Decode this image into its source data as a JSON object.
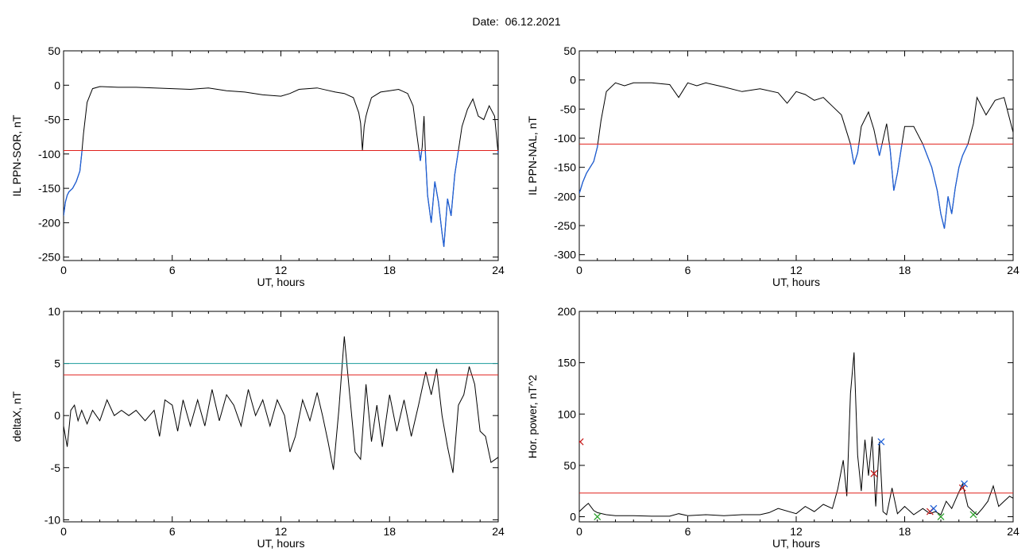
{
  "page": {
    "title": "Date:  06.12.2021"
  },
  "colors": {
    "trace": "#000000",
    "below_threshold": "#1f5fd6",
    "threshold": "#e0201c",
    "threshold2": "#1a9c9c",
    "marker_red": "#c81e1e",
    "marker_blue": "#1f5fd6",
    "marker_green": "#2aa02a"
  },
  "chart_data": [
    {
      "type": "line",
      "title": "",
      "xlabel": "UT, hours",
      "ylabel": "IL PPN-SOR, nT",
      "xlim": [
        0,
        24
      ],
      "ylim": [
        -255,
        50
      ],
      "xticks": [
        0,
        6,
        12,
        18,
        24
      ],
      "yticks": [
        50,
        0,
        -50,
        -100,
        -150,
        -200,
        -250
      ],
      "threshold": -95,
      "highlight_below": true,
      "series": [
        {
          "x": [
            0,
            0.1,
            0.2,
            0.3,
            0.5,
            0.7,
            0.9,
            1.0,
            1.1,
            1.3,
            1.6,
            2.0,
            3.0,
            4.0,
            5.0,
            6.0,
            7.0,
            8.0,
            9.0,
            10.0,
            11.0,
            12.0,
            12.5,
            13.0,
            13.5,
            14.0,
            14.5,
            15.0,
            15.5,
            16.0,
            16.3,
            16.4,
            16.5,
            16.6,
            16.7,
            16.8,
            17.0,
            17.5,
            18.0,
            18.5,
            19.0,
            19.3,
            19.5,
            19.7,
            19.8,
            19.9,
            20.0,
            20.1,
            20.3,
            20.5,
            20.7,
            20.9,
            21.0,
            21.1,
            21.2,
            21.4,
            21.6,
            21.8,
            22.0,
            22.3,
            22.6,
            22.9,
            23.2,
            23.5,
            23.8,
            24.0
          ],
          "y": [
            -190,
            -170,
            -160,
            -155,
            -150,
            -140,
            -125,
            -100,
            -70,
            -25,
            -5,
            -2,
            -3,
            -3,
            -4,
            -5,
            -6,
            -4,
            -8,
            -10,
            -14,
            -16,
            -12,
            -6,
            -5,
            -4,
            -7,
            -10,
            -12,
            -18,
            -40,
            -55,
            -95,
            -60,
            -45,
            -35,
            -18,
            -10,
            -8,
            -6,
            -12,
            -30,
            -70,
            -110,
            -90,
            -45,
            -110,
            -160,
            -200,
            -140,
            -170,
            -215,
            -235,
            -200,
            -165,
            -190,
            -130,
            -95,
            -60,
            -35,
            -20,
            -45,
            -50,
            -30,
            -45,
            -100
          ]
        }
      ]
    },
    {
      "type": "line",
      "title": "",
      "xlabel": "UT, hours",
      "ylabel": "IL PPN-NAL, nT",
      "xlim": [
        0,
        24
      ],
      "ylim": [
        -310,
        50
      ],
      "xticks": [
        0,
        6,
        12,
        18,
        24
      ],
      "yticks": [
        50,
        0,
        -50,
        -100,
        -150,
        -200,
        -250,
        -300
      ],
      "threshold": -110,
      "highlight_below": true,
      "series": [
        {
          "x": [
            0,
            0.2,
            0.4,
            0.6,
            0.8,
            1.0,
            1.2,
            1.5,
            2.0,
            2.5,
            3.0,
            4.0,
            5.0,
            5.5,
            6.0,
            6.5,
            7.0,
            8.0,
            9.0,
            10.0,
            11.0,
            11.5,
            12.0,
            12.5,
            13.0,
            13.5,
            14.0,
            14.5,
            15.0,
            15.2,
            15.4,
            15.6,
            16.0,
            16.3,
            16.6,
            17.0,
            17.2,
            17.4,
            17.6,
            18.0,
            18.5,
            19.0,
            19.5,
            19.8,
            20.0,
            20.2,
            20.4,
            20.6,
            20.8,
            21.0,
            21.2,
            21.5,
            21.8,
            22.0,
            22.5,
            23.0,
            23.5,
            24.0
          ],
          "y": [
            -195,
            -175,
            -160,
            -150,
            -140,
            -115,
            -70,
            -20,
            -5,
            -10,
            -5,
            -5,
            -8,
            -30,
            -5,
            -10,
            -5,
            -12,
            -20,
            -15,
            -22,
            -40,
            -20,
            -25,
            -35,
            -30,
            -45,
            -60,
            -110,
            -145,
            -125,
            -80,
            -55,
            -85,
            -130,
            -75,
            -120,
            -190,
            -160,
            -80,
            -80,
            -110,
            -150,
            -190,
            -230,
            -255,
            -200,
            -230,
            -185,
            -150,
            -130,
            -110,
            -75,
            -30,
            -60,
            -35,
            -30,
            -90
          ]
        }
      ]
    },
    {
      "type": "line",
      "title": "",
      "xlabel": "UT, hours",
      "ylabel": "deltaX, nT",
      "xlim": [
        0,
        24
      ],
      "ylim": [
        -10.2,
        10
      ],
      "xticks": [
        0,
        6,
        12,
        18,
        24
      ],
      "yticks": [
        10,
        5,
        0,
        -5,
        -10
      ],
      "threshold": 3.9,
      "threshold2": 5.0,
      "highlight_below": false,
      "series": [
        {
          "x": [
            0,
            0.2,
            0.4,
            0.6,
            0.8,
            1.0,
            1.3,
            1.6,
            2.0,
            2.4,
            2.8,
            3.2,
            3.6,
            4.0,
            4.5,
            5.0,
            5.3,
            5.6,
            6.0,
            6.3,
            6.6,
            7.0,
            7.4,
            7.8,
            8.2,
            8.6,
            9.0,
            9.4,
            9.8,
            10.2,
            10.6,
            11.0,
            11.4,
            11.8,
            12.2,
            12.5,
            12.8,
            13.2,
            13.6,
            14.0,
            14.3,
            14.6,
            14.9,
            15.2,
            15.5,
            15.8,
            16.1,
            16.4,
            16.7,
            17.0,
            17.3,
            17.6,
            18.0,
            18.4,
            18.8,
            19.2,
            19.6,
            20.0,
            20.3,
            20.6,
            20.9,
            21.2,
            21.5,
            21.8,
            22.1,
            22.4,
            22.7,
            23.0,
            23.3,
            23.6,
            24.0
          ],
          "y": [
            -1,
            -3,
            0.5,
            1,
            -0.5,
            0.5,
            -0.8,
            0.5,
            -0.5,
            1.5,
            0,
            0.5,
            0,
            0.5,
            -0.5,
            0.5,
            -2,
            1.5,
            1,
            -1.5,
            1.5,
            -1,
            1.5,
            -1,
            2.5,
            -0.5,
            2,
            1,
            -1,
            2.5,
            0,
            1.5,
            -1,
            1.5,
            0,
            -3.5,
            -2,
            1.5,
            -0.5,
            2.2,
            0,
            -2.5,
            -5.2,
            0.5,
            7.6,
            2,
            -3.5,
            -4.2,
            3,
            -2.5,
            1,
            -3,
            2,
            -1.5,
            1.5,
            -2,
            1,
            4.2,
            2,
            4.5,
            0,
            -3,
            -5.5,
            1,
            2,
            4.7,
            3,
            -1.5,
            -2,
            -4.5,
            -4
          ]
        }
      ]
    },
    {
      "type": "line",
      "title": "",
      "xlabel": "UT, hours",
      "ylabel": "Hor. power, nT^2",
      "xlim": [
        0,
        24
      ],
      "ylim": [
        -5,
        200
      ],
      "xticks": [
        0,
        6,
        12,
        18,
        24
      ],
      "yticks": [
        200,
        150,
        100,
        50,
        0
      ],
      "threshold": 23,
      "highlight_below": false,
      "series": [
        {
          "x": [
            0,
            0.3,
            0.5,
            0.8,
            1.0,
            1.5,
            2.0,
            3.0,
            4.0,
            5.0,
            5.5,
            6.0,
            7.0,
            8.0,
            9.0,
            10.0,
            10.5,
            11.0,
            12.0,
            12.5,
            13.0,
            13.5,
            14.0,
            14.3,
            14.6,
            14.8,
            15.0,
            15.2,
            15.4,
            15.6,
            15.8,
            16.0,
            16.2,
            16.4,
            16.6,
            16.8,
            17.0,
            17.3,
            17.6,
            18.0,
            18.5,
            19.0,
            19.4,
            19.7,
            20.0,
            20.3,
            20.6,
            20.9,
            21.2,
            21.5,
            21.8,
            22.0,
            22.3,
            22.6,
            22.9,
            23.2,
            23.5,
            23.8,
            24.0
          ],
          "y": [
            5,
            10,
            13,
            6,
            4,
            2,
            1,
            1,
            0.5,
            0.5,
            3,
            1,
            2,
            1,
            2,
            2,
            4,
            8,
            3,
            10,
            5,
            12,
            8,
            27,
            55,
            20,
            120,
            160,
            60,
            25,
            75,
            40,
            78,
            10,
            73,
            5,
            2,
            28,
            3,
            10,
            2,
            8,
            3,
            5,
            2,
            15,
            8,
            20,
            32,
            10,
            5,
            2,
            8,
            15,
            30,
            10,
            15,
            20,
            18
          ]
        }
      ],
      "markers": [
        {
          "x": 0.05,
          "y": 73,
          "color": "red"
        },
        {
          "x": 16.3,
          "y": 42,
          "color": "red"
        },
        {
          "x": 16.7,
          "y": 73,
          "color": "blue"
        },
        {
          "x": 19.4,
          "y": 5,
          "color": "red"
        },
        {
          "x": 19.6,
          "y": 8,
          "color": "blue"
        },
        {
          "x": 21.2,
          "y": 28,
          "color": "red"
        },
        {
          "x": 21.3,
          "y": 32,
          "color": "blue"
        },
        {
          "x": 1.0,
          "y": 0,
          "color": "green"
        },
        {
          "x": 20.0,
          "y": 0,
          "color": "green"
        },
        {
          "x": 21.8,
          "y": 2,
          "color": "green"
        }
      ]
    }
  ]
}
